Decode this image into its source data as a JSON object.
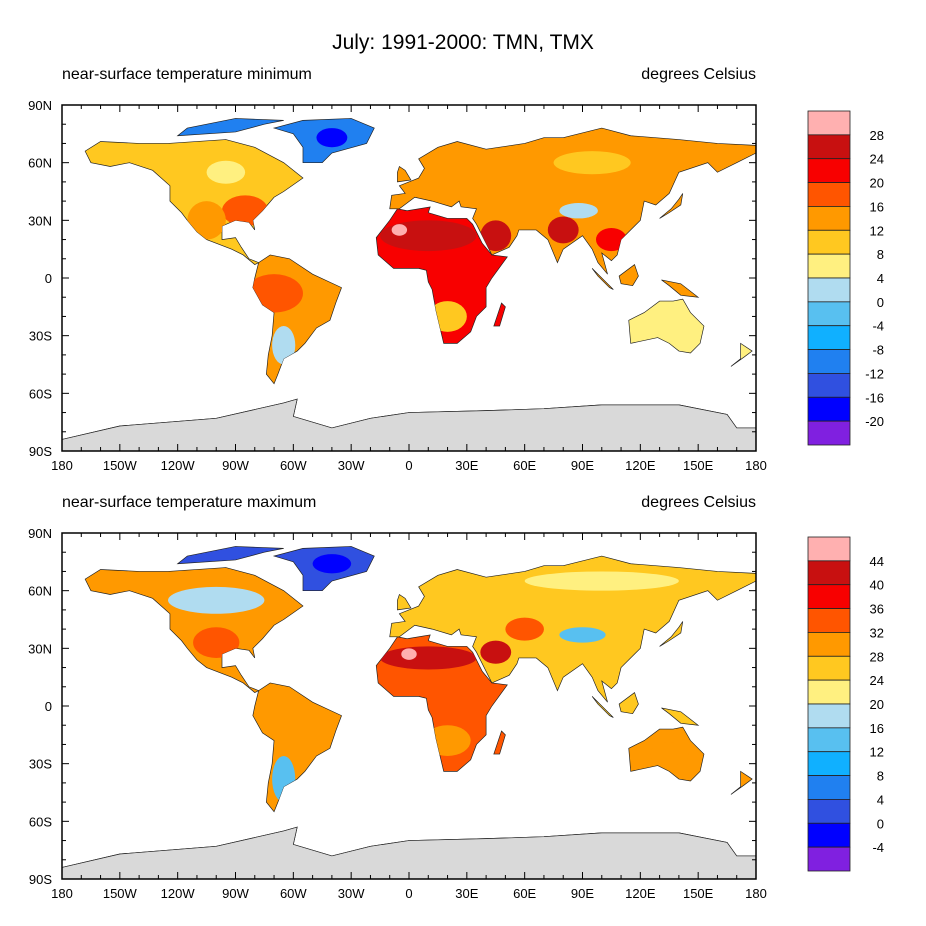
{
  "title": "July: 1991-2000: TMN, TMX",
  "chart_data": [
    {
      "type": "heatmap",
      "subtitle_left": "near-surface temperature minimum",
      "subtitle_right": "degrees Celsius",
      "xlim": [
        -180,
        180
      ],
      "ylim": [
        -90,
        90
      ],
      "xticks": [
        "180",
        "150W",
        "120W",
        "90W",
        "60W",
        "30W",
        "0",
        "30E",
        "60E",
        "90E",
        "120E",
        "150E",
        "180"
      ],
      "yticks": [
        "90N",
        "60N",
        "30N",
        "0",
        "30S",
        "60S",
        "90S"
      ],
      "colorbar_levels": [
        "28",
        "24",
        "20",
        "16",
        "12",
        "8",
        "4",
        "0",
        "-4",
        "-8",
        "-12",
        "-16",
        "-20"
      ],
      "colorbar_colors": [
        "#ffb0b0",
        "#c81010",
        "#f80000",
        "#ff5500",
        "#ff9900",
        "#ffc820",
        "#fff080",
        "#b0dcf0",
        "#58c0f0",
        "#10b0ff",
        "#2080f0",
        "#3050e0",
        "#0000ff",
        "#8020e0"
      ],
      "land_colors": {
        "na": "#ffc820",
        "sa": "#ff9900",
        "greenland": "#2080f0",
        "africa": "#f80000",
        "eurasia": "#ff9900",
        "australia": "#fff080",
        "antarctica": "#d9d9d9"
      }
    },
    {
      "type": "heatmap",
      "subtitle_left": "near-surface temperature maximum",
      "subtitle_right": "degrees Celsius",
      "xlim": [
        -180,
        180
      ],
      "ylim": [
        -90,
        90
      ],
      "xticks": [
        "180",
        "150W",
        "120W",
        "90W",
        "60W",
        "30W",
        "0",
        "30E",
        "60E",
        "90E",
        "120E",
        "150E",
        "180"
      ],
      "yticks": [
        "90N",
        "60N",
        "30N",
        "0",
        "30S",
        "60S",
        "90S"
      ],
      "colorbar_levels": [
        "44",
        "40",
        "36",
        "32",
        "28",
        "24",
        "20",
        "16",
        "12",
        "8",
        "4",
        "0",
        "-4"
      ],
      "colorbar_colors": [
        "#ffb0b0",
        "#c81010",
        "#f80000",
        "#ff5500",
        "#ff9900",
        "#ffc820",
        "#fff080",
        "#b0dcf0",
        "#58c0f0",
        "#10b0ff",
        "#2080f0",
        "#3050e0",
        "#0000ff",
        "#8020e0"
      ],
      "land_colors": {
        "na": "#ff9900",
        "sa": "#ff9900",
        "greenland": "#3050e0",
        "africa": "#ff5500",
        "eurasia": "#ffc820",
        "australia": "#ff9900",
        "antarctica": "#d9d9d9"
      }
    }
  ]
}
